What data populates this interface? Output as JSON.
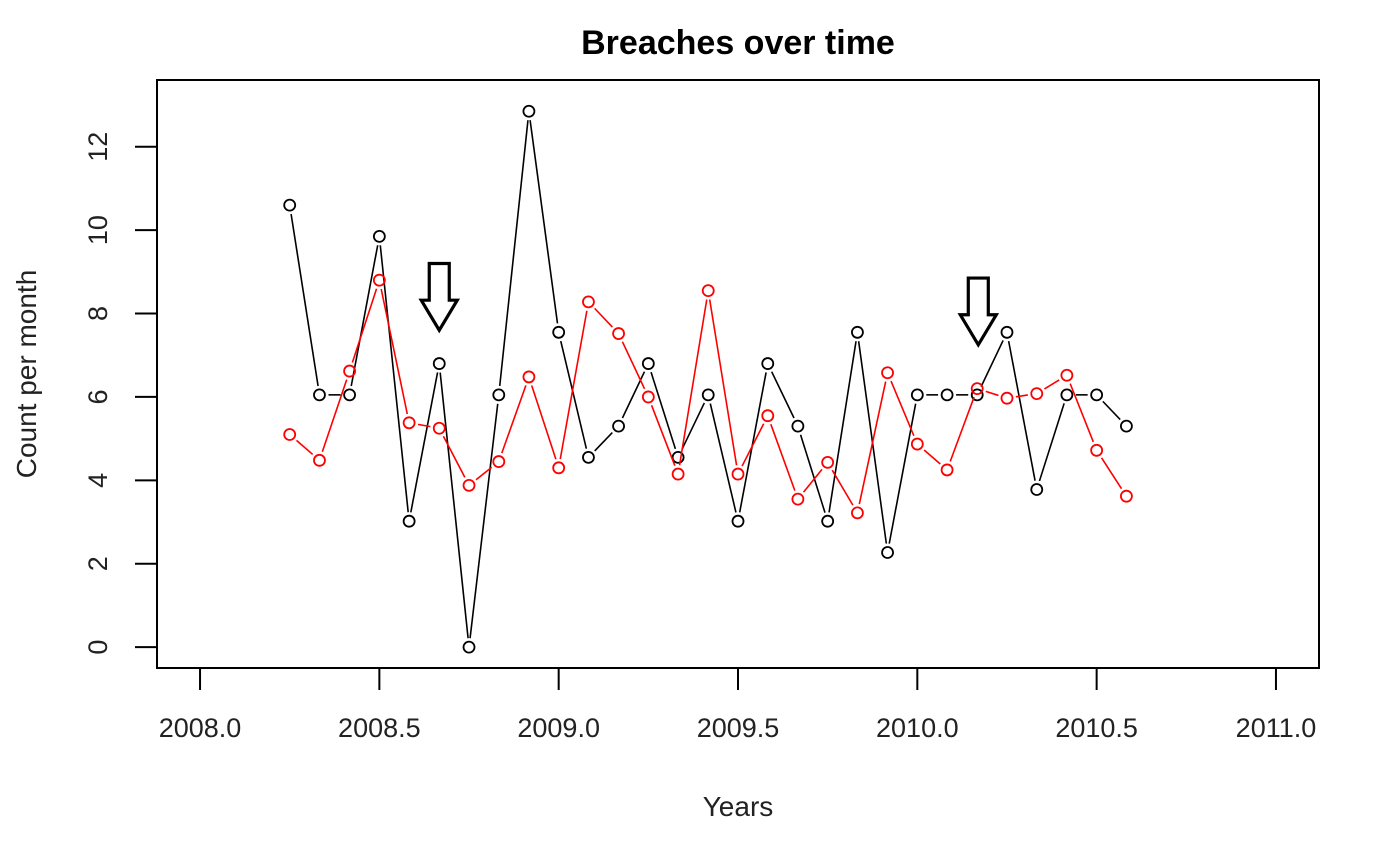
{
  "chart_data": {
    "type": "line",
    "title": "Breaches over time",
    "xlabel": "Years",
    "ylabel": "Count per month",
    "xlim": [
      2007.88,
      2011.12
    ],
    "ylim": [
      -0.5,
      13.6
    ],
    "xticks": [
      2008.0,
      2008.5,
      2009.0,
      2009.5,
      2010.0,
      2010.5,
      2011.0
    ],
    "xtick_labels": [
      "2008.0",
      "2008.5",
      "2009.0",
      "2009.5",
      "2010.0",
      "2010.5",
      "2011.0"
    ],
    "yticks": [
      0,
      2,
      4,
      6,
      8,
      10,
      12
    ],
    "ytick_labels": [
      "0",
      "2",
      "4",
      "6",
      "8",
      "10",
      "12"
    ],
    "line_style": "overplotted points and lines",
    "grid": false,
    "legend": "none",
    "series": [
      {
        "color": "#000000",
        "x": [
          2008.25,
          2008.333,
          2008.417,
          2008.5,
          2008.583,
          2008.667,
          2008.75,
          2008.833,
          2008.917,
          2009.0,
          2009.083,
          2009.167,
          2009.25,
          2009.333,
          2009.417,
          2009.5,
          2009.583,
          2009.667,
          2009.75,
          2009.833,
          2009.917,
          2010.0,
          2010.083,
          2010.167,
          2010.25,
          2010.333,
          2010.417,
          2010.5,
          2010.583
        ],
        "y": [
          10.6,
          6.05,
          6.05,
          9.85,
          3.02,
          6.8,
          0.0,
          6.05,
          12.85,
          7.55,
          4.55,
          5.3,
          6.8,
          4.55,
          6.05,
          3.02,
          6.8,
          5.3,
          3.02,
          7.55,
          2.27,
          6.05,
          6.05,
          6.05,
          7.55,
          3.78,
          6.05,
          6.05,
          5.3
        ]
      },
      {
        "color": "#ff0000",
        "x": [
          2008.25,
          2008.333,
          2008.417,
          2008.5,
          2008.583,
          2008.667,
          2008.75,
          2008.833,
          2008.917,
          2009.0,
          2009.083,
          2009.167,
          2009.25,
          2009.333,
          2009.417,
          2009.5,
          2009.583,
          2009.667,
          2009.75,
          2009.833,
          2009.917,
          2010.0,
          2010.083,
          2010.167,
          2010.25,
          2010.333,
          2010.417,
          2010.5,
          2010.583
        ],
        "y": [
          5.1,
          4.48,
          6.62,
          8.8,
          5.38,
          5.25,
          3.88,
          4.45,
          6.48,
          4.3,
          8.28,
          7.52,
          6.0,
          4.15,
          8.55,
          4.15,
          5.55,
          3.55,
          4.43,
          3.22,
          6.58,
          4.87,
          4.25,
          6.2,
          5.97,
          6.08,
          6.52,
          4.72,
          3.62
        ]
      }
    ],
    "annotations": [
      {
        "type": "down-arrow",
        "x": 2008.667,
        "y_top": 9.2,
        "y_tip": 7.6
      },
      {
        "type": "down-arrow",
        "x": 2010.17,
        "y_top": 8.85,
        "y_tip": 7.25
      }
    ]
  }
}
